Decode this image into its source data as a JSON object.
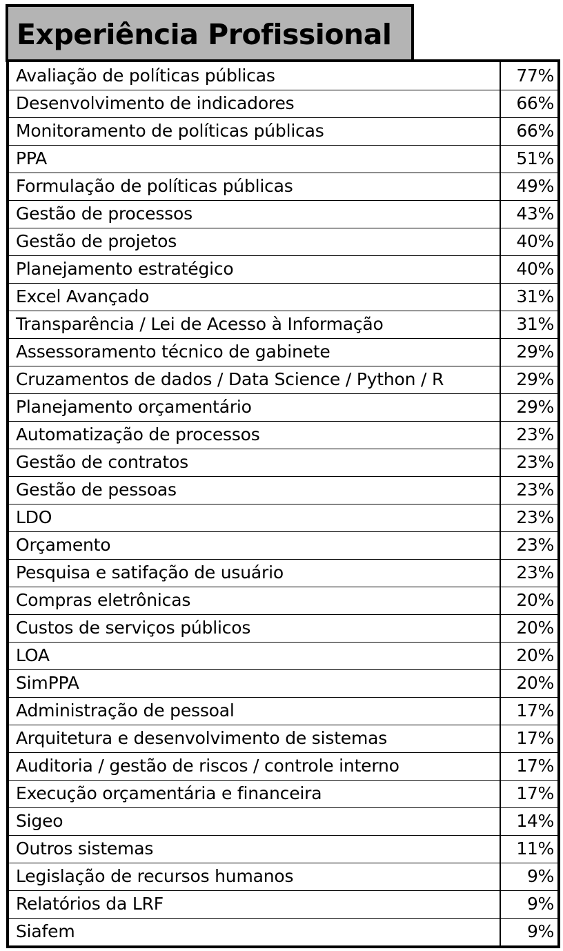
{
  "title": "Experiência Profissional",
  "chart_data": {
    "type": "table",
    "title": "Experiência Profissional",
    "columns": [
      "",
      ""
    ],
    "rows": [
      {
        "label": "Avaliação de políticas públicas",
        "value": "77%"
      },
      {
        "label": "Desenvolvimento de indicadores",
        "value": "66%"
      },
      {
        "label": "Monitoramento de políticas públicas",
        "value": "66%"
      },
      {
        "label": "PPA",
        "value": "51%"
      },
      {
        "label": "Formulação de políticas públicas",
        "value": "49%"
      },
      {
        "label": "Gestão de processos",
        "value": "43%"
      },
      {
        "label": "Gestão de projetos",
        "value": "40%"
      },
      {
        "label": "Planejamento estratégico",
        "value": "40%"
      },
      {
        "label": "Excel Avançado",
        "value": "31%"
      },
      {
        "label": "Transparência / Lei de Acesso à Informação",
        "value": "31%"
      },
      {
        "label": "Assessoramento técnico de gabinete",
        "value": "29%"
      },
      {
        "label": "Cruzamentos de dados / Data Science / Python / R",
        "value": "29%"
      },
      {
        "label": "Planejamento orçamentário",
        "value": "29%"
      },
      {
        "label": "Automatização de processos",
        "value": "23%"
      },
      {
        "label": "Gestão de contratos",
        "value": "23%"
      },
      {
        "label": "Gestão de pessoas",
        "value": "23%"
      },
      {
        "label": "LDO",
        "value": "23%"
      },
      {
        "label": "Orçamento",
        "value": "23%"
      },
      {
        "label": "Pesquisa e satifação de usuário",
        "value": "23%"
      },
      {
        "label": "Compras eletrônicas",
        "value": "20%"
      },
      {
        "label": "Custos de serviços públicos",
        "value": "20%"
      },
      {
        "label": "LOA",
        "value": "20%"
      },
      {
        "label": "SimPPA",
        "value": "20%"
      },
      {
        "label": "Administração de pessoal",
        "value": "17%"
      },
      {
        "label": "Arquitetura e desenvolvimento de sistemas",
        "value": "17%"
      },
      {
        "label": "Auditoria / gestão de riscos / controle interno",
        "value": "17%"
      },
      {
        "label": "Execução orçamentária e financeira",
        "value": "17%"
      },
      {
        "label": "Sigeo",
        "value": "14%"
      },
      {
        "label": "Outros sistemas",
        "value": "11%"
      },
      {
        "label": "Legislação de recursos humanos",
        "value": "9%"
      },
      {
        "label": "Relatórios da LRF",
        "value": "9%"
      },
      {
        "label": "Siafem",
        "value": "9%"
      }
    ]
  },
  "colors": {
    "title_background": "#b4b4b4",
    "border": "#000000",
    "text": "#000000",
    "background": "#ffffff"
  }
}
